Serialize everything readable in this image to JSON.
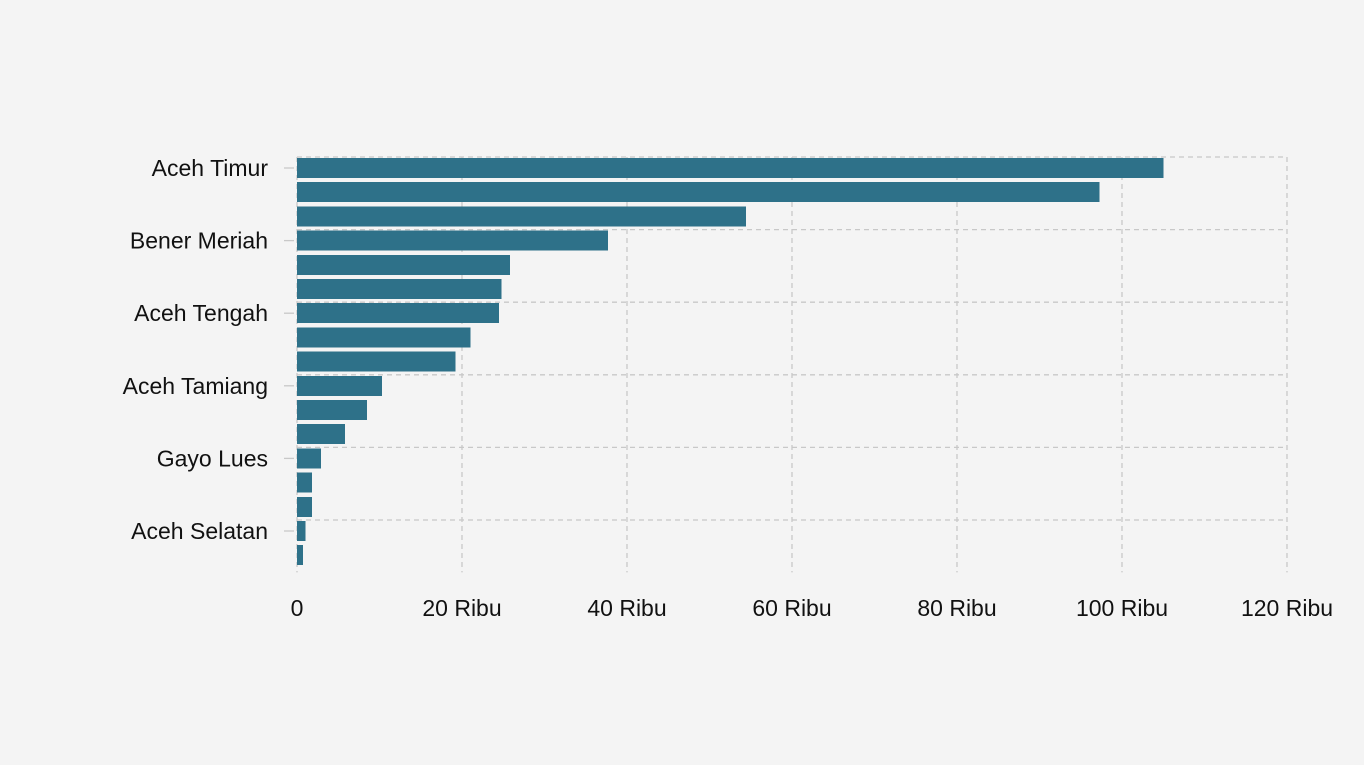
{
  "chart_data": {
    "type": "bar",
    "orientation": "horizontal",
    "bar_color": "#2e7189",
    "background": "#f4f4f4",
    "grid": true,
    "grid_style": "dashed",
    "xlim": [
      0,
      120000
    ],
    "x_ticks": [
      {
        "value": 0,
        "label": "0"
      },
      {
        "value": 20000,
        "label": "20 Ribu"
      },
      {
        "value": 40000,
        "label": "40 Ribu"
      },
      {
        "value": 60000,
        "label": "60 Ribu"
      },
      {
        "value": 80000,
        "label": "80 Ribu"
      },
      {
        "value": 100000,
        "label": "100 Ribu"
      },
      {
        "value": 120000,
        "label": "120 Ribu"
      }
    ],
    "y_tick_labels": [
      {
        "bar_index": 0,
        "label": "Aceh Timur"
      },
      {
        "bar_index": 3,
        "label": "Bener Meriah"
      },
      {
        "bar_index": 6,
        "label": "Aceh Tengah"
      },
      {
        "bar_index": 9,
        "label": "Aceh Tamiang"
      },
      {
        "bar_index": 12,
        "label": "Gayo Lues"
      },
      {
        "bar_index": 15,
        "label": "Aceh Selatan"
      }
    ],
    "categories": [
      "Aceh Timur",
      "",
      "",
      "Bener Meriah",
      "",
      "",
      "Aceh Tengah",
      "",
      "",
      "Aceh Tamiang",
      "",
      "",
      "Gayo Lues",
      "",
      "",
      "Aceh Selatan",
      ""
    ],
    "values": [
      105000,
      97300,
      54400,
      37700,
      25800,
      24800,
      24500,
      21000,
      19200,
      10300,
      8500,
      5800,
      2900,
      1800,
      1800,
      1000,
      700
    ],
    "title": "",
    "xlabel": "",
    "ylabel": ""
  }
}
